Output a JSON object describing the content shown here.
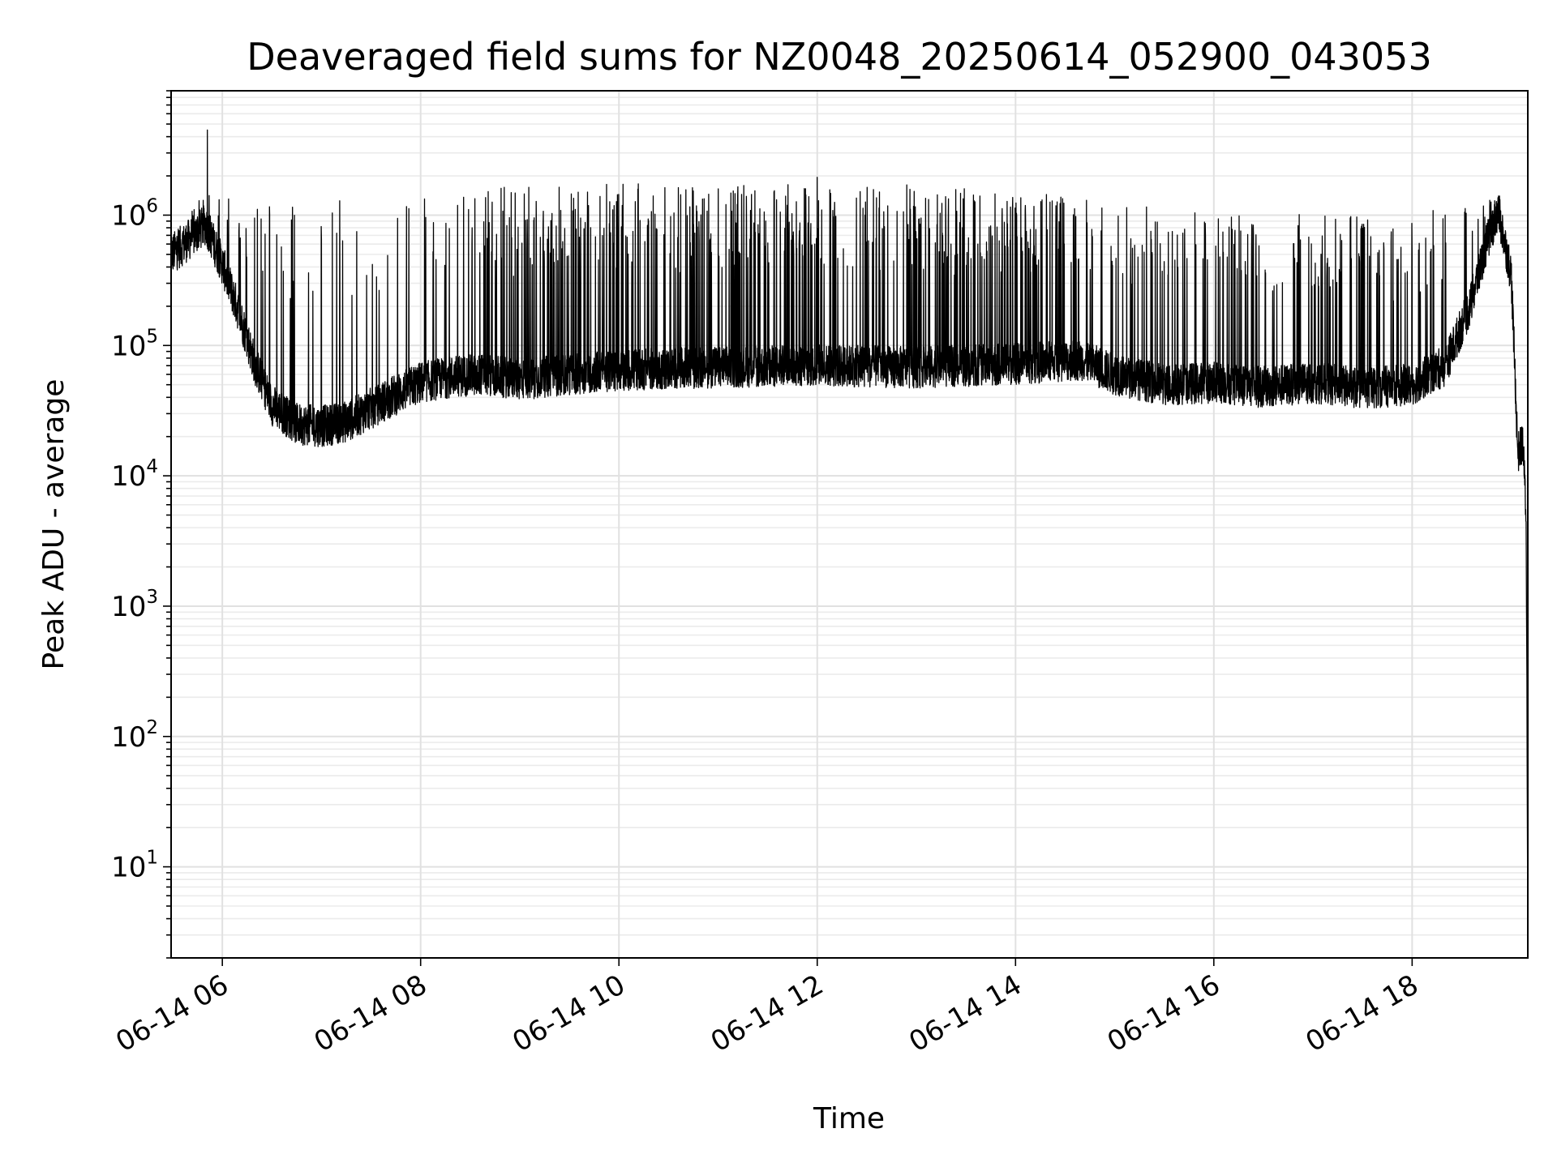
{
  "chart_data": {
    "type": "line",
    "title": "Deaveraged field sums for NZ0048_20250614_052900_043053",
    "xlabel": "Time",
    "ylabel": "Peak ADU - average",
    "yscale": "log",
    "ylim": [
      2,
      9000000
    ],
    "xlim": [
      "2025-06-14 05:29",
      "2025-06-14 19:10"
    ],
    "grid": true,
    "grid_minor": true,
    "line_color": "#000000",
    "x_ticks": [
      {
        "value": "2025-06-14 06:00",
        "label": "06-14 06"
      },
      {
        "value": "2025-06-14 08:00",
        "label": "06-14 08"
      },
      {
        "value": "2025-06-14 10:00",
        "label": "06-14 10"
      },
      {
        "value": "2025-06-14 12:00",
        "label": "06-14 12"
      },
      {
        "value": "2025-06-14 14:00",
        "label": "06-14 14"
      },
      {
        "value": "2025-06-14 16:00",
        "label": "06-14 16"
      },
      {
        "value": "2025-06-14 18:00",
        "label": "06-14 18"
      }
    ],
    "y_ticks": [
      {
        "value": 10,
        "base": "10",
        "exp": "1"
      },
      {
        "value": 100,
        "base": "10",
        "exp": "2"
      },
      {
        "value": 1000,
        "base": "10",
        "exp": "3"
      },
      {
        "value": 10000,
        "base": "10",
        "exp": "4"
      },
      {
        "value": 100000,
        "base": "10",
        "exp": "5"
      },
      {
        "value": 1000000,
        "base": "10",
        "exp": "6"
      }
    ],
    "series": [
      {
        "baseline_points": [
          {
            "x": "2025-06-14 05:29",
            "y": 500000
          },
          {
            "x": "2025-06-14 05:40",
            "y": 650000
          },
          {
            "x": "2025-06-14 05:50",
            "y": 850000
          },
          {
            "x": "2025-06-14 06:00",
            "y": 420000
          },
          {
            "x": "2025-06-14 06:10",
            "y": 180000
          },
          {
            "x": "2025-06-14 06:20",
            "y": 70000
          },
          {
            "x": "2025-06-14 06:30",
            "y": 35000
          },
          {
            "x": "2025-06-14 06:45",
            "y": 25000
          },
          {
            "x": "2025-06-14 07:00",
            "y": 24000
          },
          {
            "x": "2025-06-14 07:15",
            "y": 26000
          },
          {
            "x": "2025-06-14 07:30",
            "y": 33000
          },
          {
            "x": "2025-06-14 07:45",
            "y": 42000
          },
          {
            "x": "2025-06-14 08:00",
            "y": 52000
          },
          {
            "x": "2025-06-14 08:20",
            "y": 58000
          },
          {
            "x": "2025-06-14 08:40",
            "y": 60000
          },
          {
            "x": "2025-06-14 09:00",
            "y": 55000
          },
          {
            "x": "2025-06-14 09:30",
            "y": 60000
          },
          {
            "x": "2025-06-14 10:00",
            "y": 65000
          },
          {
            "x": "2025-06-14 11:00",
            "y": 68000
          },
          {
            "x": "2025-06-14 12:00",
            "y": 70000
          },
          {
            "x": "2025-06-14 13:00",
            "y": 68000
          },
          {
            "x": "2025-06-14 14:00",
            "y": 72000
          },
          {
            "x": "2025-06-14 14:40",
            "y": 78000
          },
          {
            "x": "2025-06-14 15:00",
            "y": 60000
          },
          {
            "x": "2025-06-14 15:30",
            "y": 50000
          },
          {
            "x": "2025-06-14 16:00",
            "y": 52000
          },
          {
            "x": "2025-06-14 16:30",
            "y": 48000
          },
          {
            "x": "2025-06-14 17:00",
            "y": 52000
          },
          {
            "x": "2025-06-14 17:30",
            "y": 47000
          },
          {
            "x": "2025-06-14 18:00",
            "y": 50000
          },
          {
            "x": "2025-06-14 18:20",
            "y": 70000
          },
          {
            "x": "2025-06-14 18:35",
            "y": 200000
          },
          {
            "x": "2025-06-14 18:45",
            "y": 600000
          },
          {
            "x": "2025-06-14 18:52",
            "y": 1100000
          },
          {
            "x": "2025-06-14 19:00",
            "y": 350000
          },
          {
            "x": "2025-06-14 19:04",
            "y": 15000
          },
          {
            "x": "2025-06-14 19:07",
            "y": 18000
          },
          {
            "x": "2025-06-14 19:09",
            "y": 5000
          },
          {
            "x": "2025-06-14 19:10",
            "y": 4
          }
        ],
        "spike_envelope": [
          {
            "x": "2025-06-14 05:29",
            "y": 700000
          },
          {
            "x": "2025-06-14 05:50",
            "y": 1500000
          },
          {
            "x": "2025-06-14 06:10",
            "y": 1300000
          },
          {
            "x": "2025-06-14 07:00",
            "y": 1300000
          },
          {
            "x": "2025-06-14 08:00",
            "y": 1400000
          },
          {
            "x": "2025-06-14 08:30",
            "y": 1600000
          },
          {
            "x": "2025-06-14 09:00",
            "y": 1700000
          },
          {
            "x": "2025-06-14 12:00",
            "y": 1800000
          },
          {
            "x": "2025-06-14 14:00",
            "y": 1600000
          },
          {
            "x": "2025-06-14 15:00",
            "y": 1200000
          },
          {
            "x": "2025-06-14 16:00",
            "y": 1100000
          },
          {
            "x": "2025-06-14 17:00",
            "y": 1000000
          },
          {
            "x": "2025-06-14 18:00",
            "y": 1000000
          },
          {
            "x": "2025-06-14 18:50",
            "y": 1400000
          }
        ],
        "notable_peaks": [
          {
            "x": "2025-06-14 05:51",
            "y": 4500000
          },
          {
            "x": "2025-06-14 12:00",
            "y": 1950000
          }
        ]
      }
    ]
  }
}
